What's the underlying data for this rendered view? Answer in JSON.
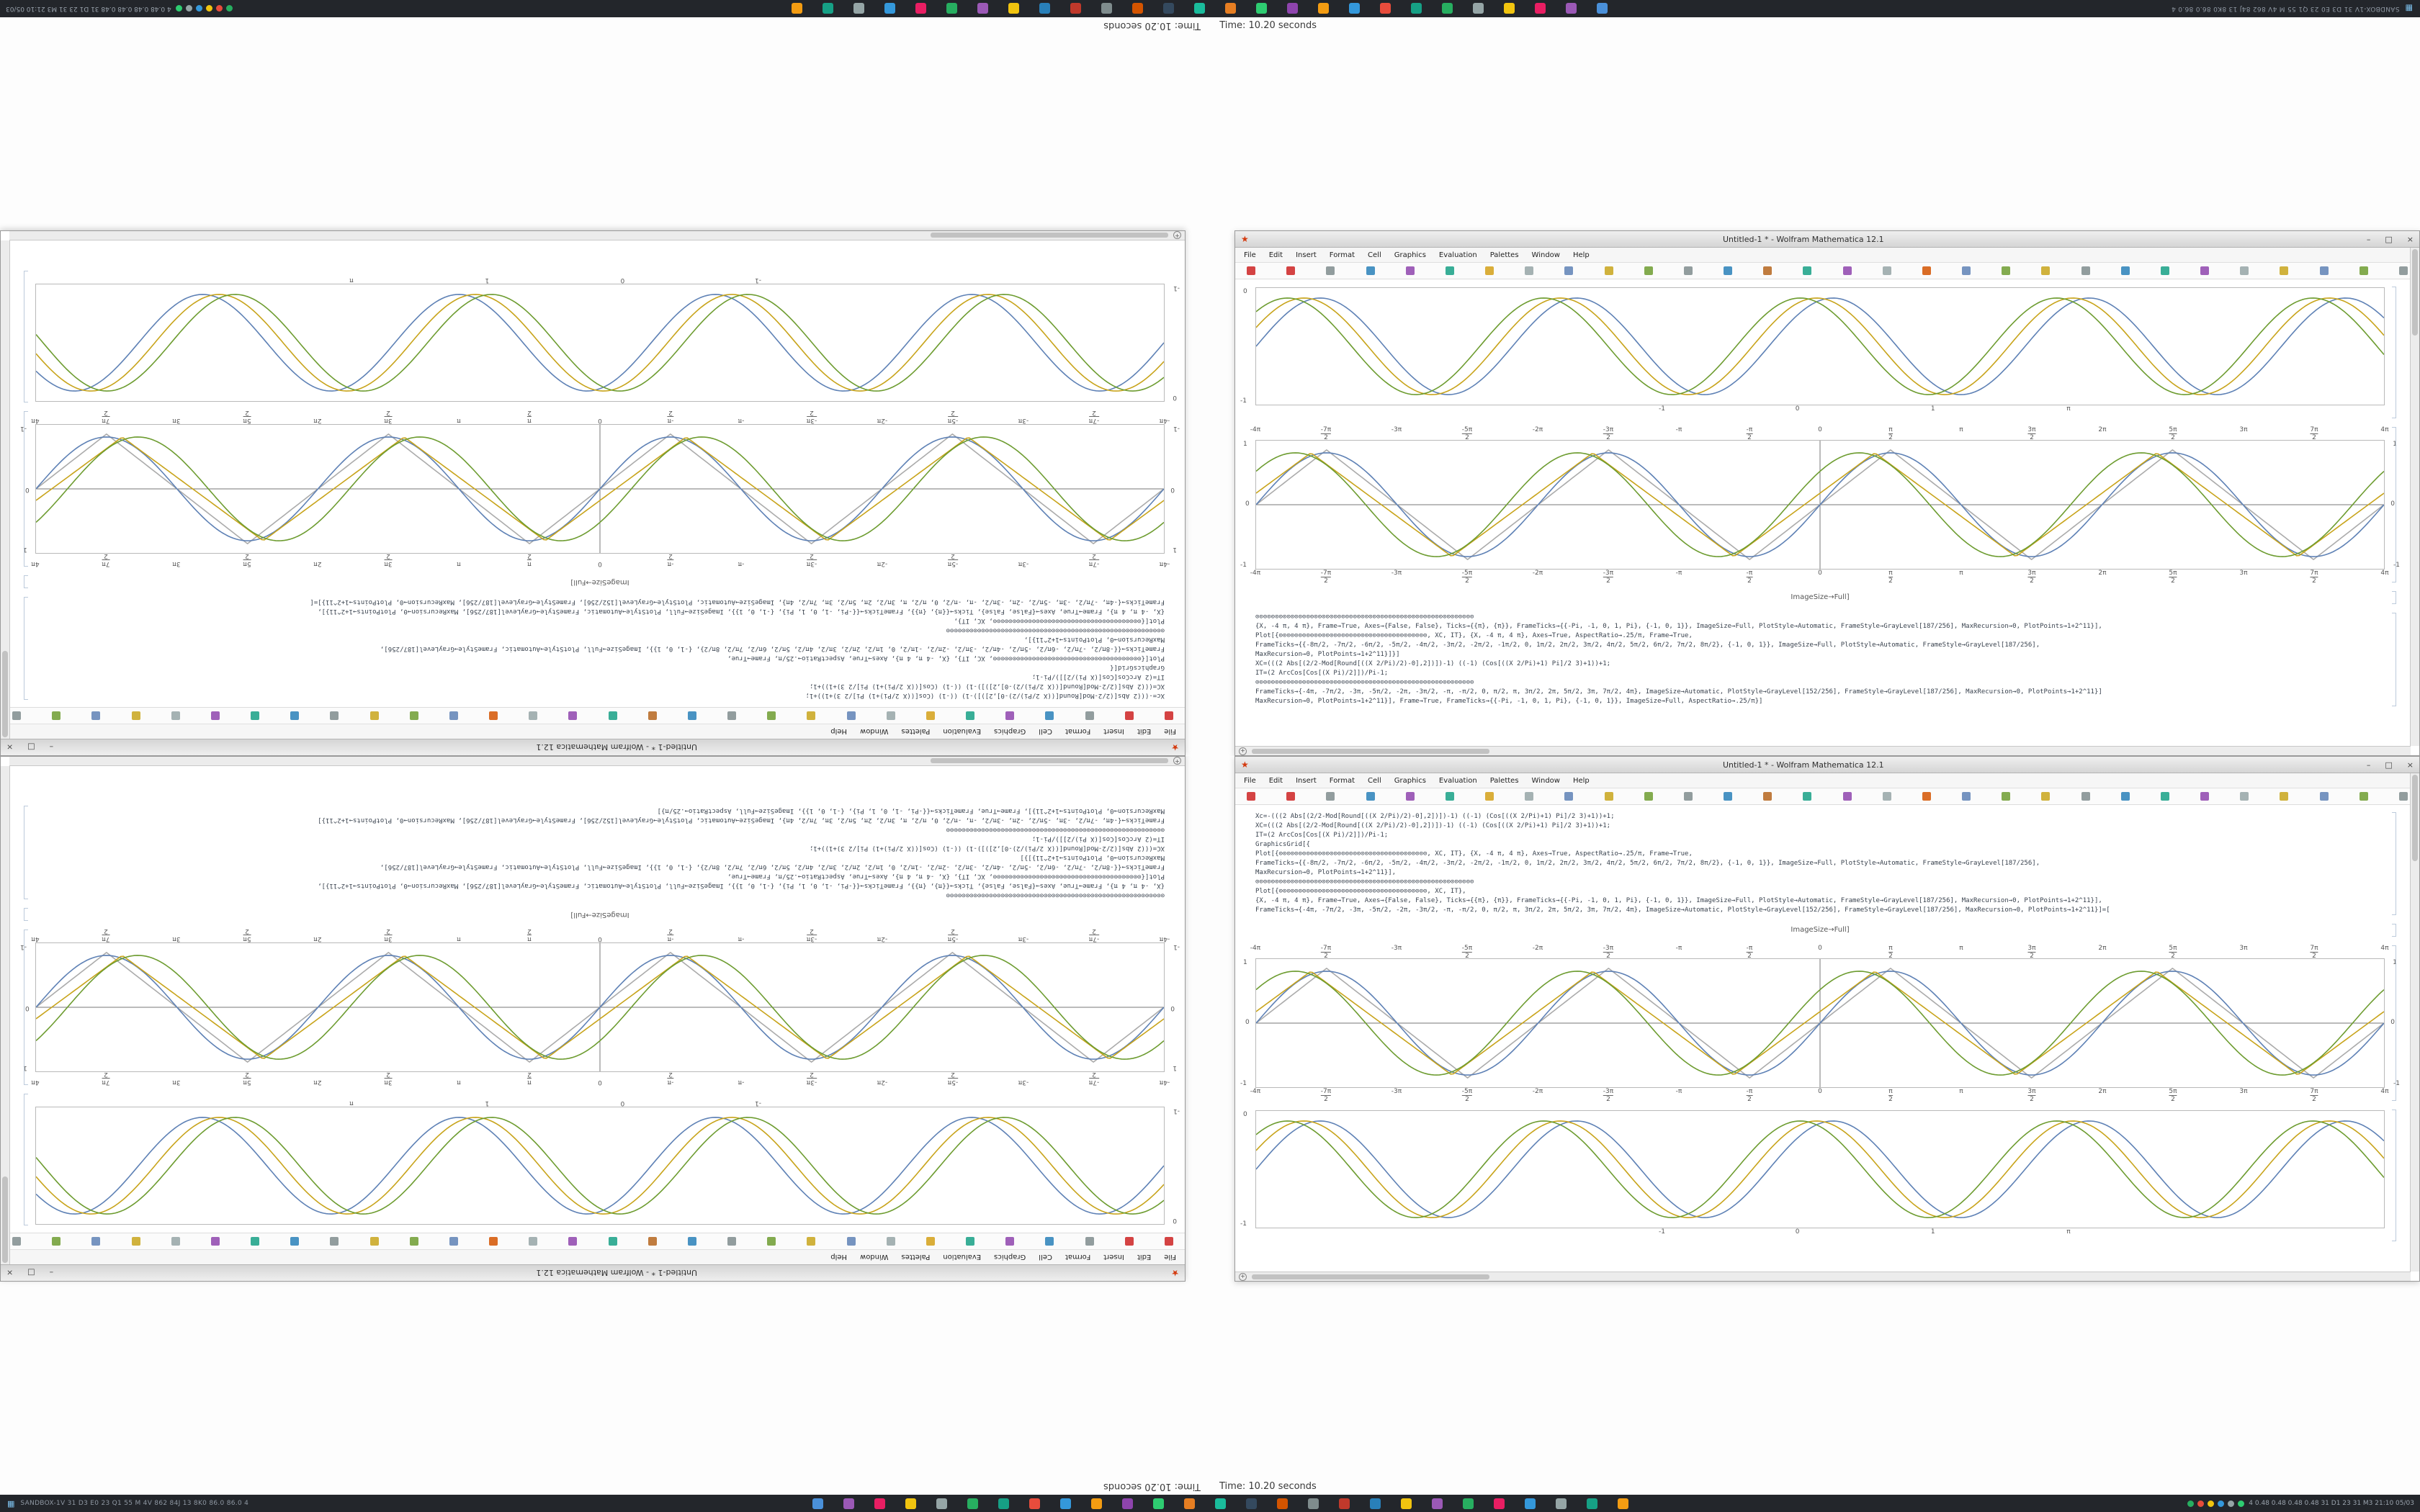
{
  "window": {
    "title": "Untitled-1 * - Wolfram Mathematica 12.1",
    "icon": "★",
    "controls": {
      "min": "–",
      "max": "□",
      "close": "×"
    },
    "menu": [
      "File",
      "Edit",
      "Insert",
      "Format",
      "Cell",
      "Graphics",
      "Evaluation",
      "Palettes",
      "Window",
      "Help"
    ],
    "toolbar_icons": [
      "#cc2222",
      "#cc2222",
      "#7f8c8d",
      "#2980b9",
      "#8e44ad",
      "#16a085",
      "#d4a017",
      "#95a5a6",
      "#5e81b5",
      "#c8a41b",
      "#6d9c30",
      "#7f8c8d",
      "#2980b9",
      "#b5651d",
      "#16a085",
      "#8e44ad",
      "#95a5a6",
      "#d35400",
      "#5e81b5",
      "#6d9c30",
      "#c8a41b",
      "#7f8c8d",
      "#2980b9",
      "#16a085",
      "#8e44ad",
      "#95a5a6",
      "#c8a41b",
      "#5e81b5",
      "#6d9c30",
      "#7f8c8d"
    ],
    "scroll_plus": "+"
  },
  "notebook": {
    "label": "ImageSize→Full]",
    "code_a": [
      "Xc=-(((2 Abs[(2/2-Mod[Round[((X 2/Pi)/2)-0],2])])-1) ((-1) (Cos[((X 2/Pi)+1) Pi]/2 3)+1))+1;",
      "XC=(((2 Abs[(2/2-Mod[Round[((X 2/Pi)/2)-0],2])])-1) ((-1) (Cos[((X 2/Pi)+1) Pi]/2 3)+1))+1;",
      "IT=(2 ArcCos[Cos[(X Pi)/2]])/Pi-1;",
      "GraphicsGrid[{",
      "Plot[{⊙⊙⊙⊙⊙⊙⊙⊙⊙⊙⊙⊙⊙⊙⊙⊙⊙⊙⊙⊙⊙⊙⊙⊙⊙⊙⊙⊙⊙⊙⊙⊙⊙⊙⊙⊙⊙⊙, XC, IT}, {X, -4 π, 4 π}, Axes→True, AspectRatio→.25/π, Frame→True,",
      "FrameTicks→{{-8π/2, -7π/2, -6π/2, -5π/2, -4π/2, -3π/2, -2π/2, -1π/2, 0, 1π/2, 2π/2, 3π/2, 4π/2, 5π/2, 6π/2, 7π/2, 8π/2}, {-1, 0, 1}}, ImageSize→Full, PlotStyle→Automatic, FrameStyle→GrayLevel[187/256],",
      "MaxRecursion→0, PlotPoints→1+2^11}],",
      "⊙⊙⊙⊙⊙⊙⊙⊙⊙⊙⊙⊙⊙⊙⊙⊙⊙⊙⊙⊙⊙⊙⊙⊙⊙⊙⊙⊙⊙⊙⊙⊙⊙⊙⊙⊙⊙⊙⊙⊙⊙⊙⊙⊙⊙⊙⊙⊙⊙⊙⊙⊙⊙⊙⊙⊙",
      "Plot[{⊙⊙⊙⊙⊙⊙⊙⊙⊙⊙⊙⊙⊙⊙⊙⊙⊙⊙⊙⊙⊙⊙⊙⊙⊙⊙⊙⊙⊙⊙⊙⊙⊙⊙⊙⊙⊙⊙, XC, IT},",
      "{X, -4 π, 4 π}, Frame→True, Axes→{False, False}, Ticks→{{π}, {π}}, FrameTicks→{{-Pi, -1, 0, 1, Pi}, {-1, 0, 1}}, ImageSize→Full, PlotStyle→Automatic, FrameStyle→GrayLevel[187/256], MaxRecursion→0, PlotPoints→1+2^11}],",
      "FrameTicks→{-4π, -7π/2, -3π, -5π/2, -2π, -3π/2, -π, -π/2, 0, π/2, π, 3π/2, 2π, 5π/2, 3π, 7π/2, 4π}, ImageSize→Automatic, PlotStyle→GrayLevel[152/256], FrameStyle→GrayLevel[187/256], MaxRecursion→0, PlotPoints→1+2^11}]=["
    ],
    "code_b": [
      "⊙⊙⊙⊙⊙⊙⊙⊙⊙⊙⊙⊙⊙⊙⊙⊙⊙⊙⊙⊙⊙⊙⊙⊙⊙⊙⊙⊙⊙⊙⊙⊙⊙⊙⊙⊙⊙⊙⊙⊙⊙⊙⊙⊙⊙⊙⊙⊙⊙⊙⊙⊙⊙⊙⊙⊙",
      "{X, -4 π, 4 π}, Frame→True, Axes→{False, False}, Ticks→{{π}, {π}}, FrameTicks→{{-Pi, -1, 0, 1, Pi}, {-1, 0, 1}}, ImageSize→Full, PlotStyle→Automatic, FrameStyle→GrayLevel[187/256], MaxRecursion→0, PlotPoints→1+2^11}],",
      "Plot[{⊙⊙⊙⊙⊙⊙⊙⊙⊙⊙⊙⊙⊙⊙⊙⊙⊙⊙⊙⊙⊙⊙⊙⊙⊙⊙⊙⊙⊙⊙⊙⊙⊙⊙⊙⊙⊙⊙, XC, IT}, {X, -4 π, 4 π}, Axes→True, AspectRatio→.25/π, Frame→True,",
      "FrameTicks→{{-8π/2, -7π/2, -6π/2, -5π/2, -4π/2, -3π/2, -2π/2, -1π/2, 0, 1π/2, 2π/2, 3π/2, 4π/2, 5π/2, 6π/2, 7π/2, 8π/2}, {-1, 0, 1}}, ImageSize→Full, PlotStyle→Automatic, FrameStyle→GrayLevel[187/256],",
      "MaxRecursion→0, PlotPoints→1+2^11}]}]",
      "XC=(((2 Abs[(2/2-Mod[Round[((X 2/Pi)/2)-0],2])])-1) ((-1) (Cos[((X 2/Pi)+1) Pi]/2 3)+1))+1;",
      "IT=(2 ArcCos[Cos[(X Pi)/2]])/Pi-1;",
      "⊙⊙⊙⊙⊙⊙⊙⊙⊙⊙⊙⊙⊙⊙⊙⊙⊙⊙⊙⊙⊙⊙⊙⊙⊙⊙⊙⊙⊙⊙⊙⊙⊙⊙⊙⊙⊙⊙⊙⊙⊙⊙⊙⊙⊙⊙⊙⊙⊙⊙⊙⊙⊙⊙⊙⊙",
      "FrameTicks→{-4π, -7π/2, -3π, -5π/2, -2π, -3π/2, -π, -π/2, 0, π/2, π, 3π/2, 2π, 5π/2, 3π, 7π/2, 4π}, ImageSize→Automatic, PlotStyle→GrayLevel[152/256], FrameStyle→GrayLevel[187/256], MaxRecursion→0, PlotPoints→1+2^11}]",
      "MaxRecursion→0, PlotPoints→1+2^11}], Frame→True, FrameTicks→{{-Pi, -1, 0, 1, Pi}, {-1, 0, 1}}, ImageSize→Full, AspectRatio→.25/π}]"
    ]
  },
  "chart_data": {
    "plotB": {
      "type": "line",
      "title": "",
      "xlabel": "",
      "ylabel": "",
      "x_range": [
        -12.566,
        12.566
      ],
      "ylim": [
        -1,
        1
      ],
      "cycles": 4,
      "axes": true,
      "grid": false,
      "yticks": [
        "1",
        "0",
        "-1"
      ],
      "xticks": [
        {
          "t": "-4π",
          "b": "",
          "x": 0
        },
        {
          "t": "-7π",
          "b": "2",
          "x": 6.25
        },
        {
          "t": "-3π",
          "b": "",
          "x": 12.5
        },
        {
          "t": "-5π",
          "b": "2",
          "x": 18.75
        },
        {
          "t": "-2π",
          "b": "",
          "x": 25
        },
        {
          "t": "-3π",
          "b": "2",
          "x": 31.25
        },
        {
          "t": "-π",
          "b": "",
          "x": 37.5
        },
        {
          "t": "-π",
          "b": "2",
          "x": 43.75
        },
        {
          "t": "0",
          "b": "",
          "x": 50
        },
        {
          "t": "π",
          "b": "2",
          "x": 56.25
        },
        {
          "t": "π",
          "b": "",
          "x": 62.5
        },
        {
          "t": "3π",
          "b": "2",
          "x": 68.75
        },
        {
          "t": "2π",
          "b": "",
          "x": 75
        },
        {
          "t": "5π",
          "b": "2",
          "x": 81.25
        },
        {
          "t": "3π",
          "b": "",
          "x": 87.5
        },
        {
          "t": "7π",
          "b": "2",
          "x": 93.75
        },
        {
          "t": "4π",
          "b": "",
          "x": 100
        }
      ],
      "series": [
        {
          "name": "gray-triangle",
          "shape": "tri",
          "color": "#ababab",
          "phase": 0,
          "amp": 0.93
        },
        {
          "name": "blue-sine",
          "shape": "sin",
          "color": "#5e81b5",
          "phase": 0,
          "amp": 0.88
        },
        {
          "name": "olive-triangle",
          "shape": "tri",
          "color": "#c8a41b",
          "phase": 0.35,
          "amp": 0.88
        },
        {
          "name": "green-sine",
          "shape": "sin",
          "color": "#6d9c30",
          "phase": 0.7,
          "amp": 0.88
        }
      ]
    },
    "plotA": {
      "type": "line",
      "title": "",
      "xlabel": "",
      "ylabel": "",
      "x_range": [
        -6.283,
        6.283
      ],
      "ylim": [
        -1,
        1
      ],
      "cycles": 4.4,
      "axes": false,
      "grid": false,
      "yticks": [
        "0",
        "-1"
      ],
      "xticks": [
        {
          "t": "-1",
          "b": "",
          "x": 36
        },
        {
          "t": "0",
          "b": "",
          "x": 48
        },
        {
          "t": "1",
          "b": "",
          "x": 60
        },
        {
          "t": "π",
          "b": "",
          "x": 72
        }
      ],
      "series": [
        {
          "name": "blue-sine",
          "shape": "sin",
          "color": "#5e81b5",
          "phase": 0,
          "amp": 0.9
        },
        {
          "name": "olive-sine",
          "shape": "sin",
          "color": "#c8a41b",
          "phase": 0.4,
          "amp": 0.9
        },
        {
          "name": "green-sine",
          "shape": "sin",
          "color": "#6d9c30",
          "phase": 0.8,
          "amp": 0.9
        }
      ]
    }
  },
  "taskbar": {
    "start_glyph": "▦",
    "left_text": "SANDBOX-1V 31 D3 E0 23 Q1 55 M 4V 862 84J 13 8K0 86.0 86.0 4",
    "right_text": "4 0.48 0.48 0.48 0.48 31 D1 23 31 M3  21:10 05/03",
    "app_icon_colors": [
      "#4a90d9",
      "#9b59b6",
      "#e91e63",
      "#f1c40f",
      "#95a5a6",
      "#27ae60",
      "#16a085",
      "#e74c3c",
      "#3498db",
      "#f39c12",
      "#8e44ad",
      "#2ecc71",
      "#e67e22",
      "#1abc9c",
      "#34495e",
      "#d35400",
      "#7f8c8d",
      "#c0392b",
      "#2980b9",
      "#f1c40f",
      "#9b59b6",
      "#27ae60",
      "#e91e63",
      "#3498db",
      "#95a5a6",
      "#16a085",
      "#f39c12"
    ],
    "tray_icon_colors": [
      "#27ae60",
      "#e74c3c",
      "#f1c40f",
      "#3498db",
      "#95a5a6",
      "#2ecc71"
    ]
  },
  "timer": {
    "text": "Time: 10.20 seconds"
  }
}
